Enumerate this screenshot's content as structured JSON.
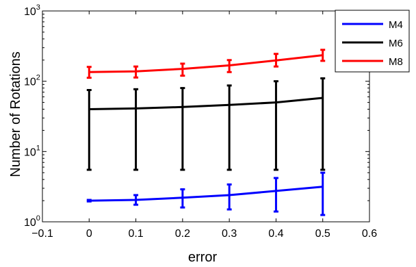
{
  "chart_data": {
    "type": "line",
    "xlabel": "error",
    "ylabel": "Number of Rotations",
    "xlim": [
      -0.1,
      0.6
    ],
    "ylim": [
      1,
      1000
    ],
    "yscale": "log",
    "x_ticks": [
      "−0.1",
      "0",
      "0.1",
      "0.2",
      "0.3",
      "0.4",
      "0.5",
      "0.6"
    ],
    "y_ticks": [
      {
        "base": "10",
        "exp": "0"
      },
      {
        "base": "10",
        "exp": "1"
      },
      {
        "base": "10",
        "exp": "2"
      },
      {
        "base": "10",
        "exp": "3"
      }
    ],
    "grid": false,
    "legend_position": "top-right",
    "x": [
      0,
      0.1,
      0.2,
      0.3,
      0.4,
      0.5
    ],
    "series": [
      {
        "name": "M4",
        "color": "#0000ff",
        "values": [
          2.0,
          2.05,
          2.2,
          2.4,
          2.75,
          3.15
        ],
        "err_low": [
          1.95,
          1.75,
          1.6,
          1.5,
          1.4,
          1.25
        ],
        "err_high": [
          2.05,
          2.4,
          2.9,
          3.4,
          4.2,
          5.0
        ]
      },
      {
        "name": "M6",
        "color": "#000000",
        "values": [
          40,
          41,
          43,
          46,
          50,
          58
        ],
        "err_low": [
          5.5,
          5.5,
          5.5,
          5.5,
          5.5,
          5.5
        ],
        "err_high": [
          75,
          77,
          80,
          87,
          100,
          110
        ]
      },
      {
        "name": "M8",
        "color": "#ff0000",
        "values": [
          135,
          138,
          150,
          168,
          198,
          235
        ],
        "err_low": [
          112,
          113,
          120,
          135,
          162,
          195
        ],
        "err_high": [
          160,
          162,
          178,
          200,
          245,
          280
        ]
      }
    ]
  }
}
